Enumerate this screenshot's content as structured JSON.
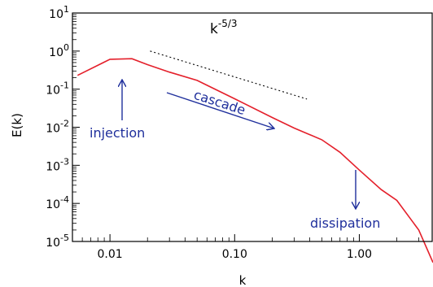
{
  "chart_data": {
    "type": "line",
    "title": "",
    "xlabel": "k",
    "ylabel": "E(k)",
    "xscale": "log",
    "yscale": "log",
    "xlim": [
      0.005,
      3.9
    ],
    "ylim": [
      1e-05,
      10
    ],
    "x_tick_labels": [
      {
        "v": 0.01,
        "label": "0.01"
      },
      {
        "v": 0.1,
        "label": "0.10"
      },
      {
        "v": 1,
        "label": "1.00"
      }
    ],
    "y_tick_labels": [
      {
        "exp": 1,
        "base": "10",
        "sup": "1"
      },
      {
        "exp": 0,
        "base": "10",
        "sup": "0"
      },
      {
        "exp": -1,
        "base": "10",
        "sup": "-1"
      },
      {
        "exp": -2,
        "base": "10",
        "sup": "-2"
      },
      {
        "exp": -3,
        "base": "10",
        "sup": "-3"
      },
      {
        "exp": -4,
        "base": "10",
        "sup": "-4"
      },
      {
        "exp": -5,
        "base": "10",
        "sup": "-5"
      }
    ],
    "series": [
      {
        "color": "#e4202b",
        "x": [
          0.0055,
          0.01,
          0.015,
          0.02,
          0.03,
          0.05,
          0.1,
          0.2,
          0.3,
          0.5,
          0.7,
          1.0,
          1.5,
          2.0,
          3.0,
          3.9
        ],
        "y": [
          0.23,
          0.61,
          0.63,
          0.44,
          0.28,
          0.17,
          0.056,
          0.018,
          0.0095,
          0.0047,
          0.0022,
          0.00075,
          0.00023,
          0.00012,
          2e-05,
          2.8e-06
        ]
      }
    ],
    "reference_line": {
      "style": "dotted",
      "color": "#000000",
      "x": [
        0.021,
        0.38
      ],
      "y": [
        1.0,
        0.055
      ],
      "label_base": "k",
      "label_sup": "-5/3"
    },
    "annotations": [
      {
        "text": "injection",
        "color": "#1f2f9c",
        "arrow": "up"
      },
      {
        "text": "cascade",
        "color": "#1f2f9c",
        "arrow": "diagonal"
      },
      {
        "text": "dissipation",
        "color": "#1f2f9c",
        "arrow": "down"
      }
    ]
  }
}
